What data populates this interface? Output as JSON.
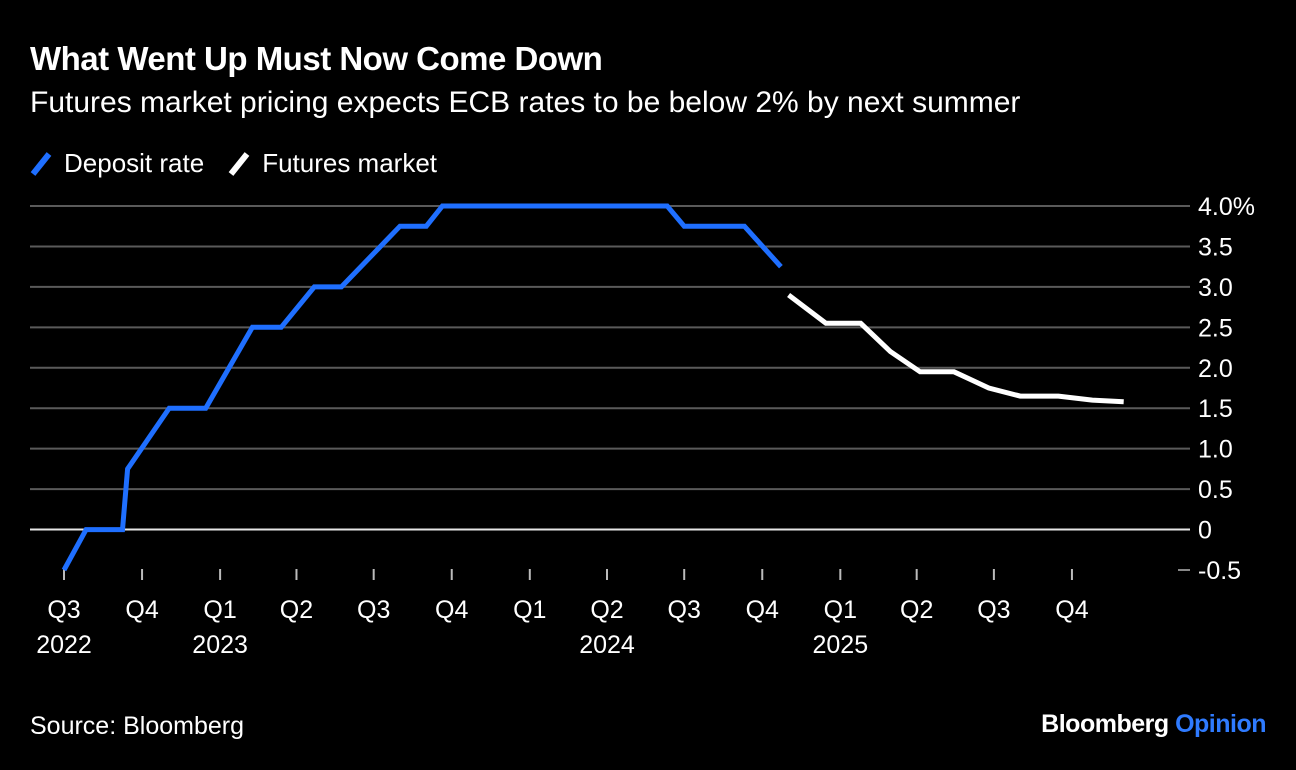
{
  "header": {
    "title": "What Went Up Must Now Come Down",
    "subtitle": "Futures market pricing expects ECB rates to be below 2% by next summer"
  },
  "footer": {
    "source": "Source: Bloomberg",
    "brand_main": "Bloomberg",
    "brand_accent": "Opinion"
  },
  "chart_data": {
    "type": "line",
    "title": "What Went Up Must Now Come Down",
    "subtitle": "Futures market pricing expects ECB rates to be below 2% by next summer",
    "legend": {
      "placement": "top-left"
    },
    "grid": true,
    "xlim": [
      "2022-07-01",
      "2026-01-01"
    ],
    "ylim": [
      -0.5,
      4.0
    ],
    "y_ticks": [
      {
        "value": 4.0,
        "label": "4.0%"
      },
      {
        "value": 3.5,
        "label": "3.5"
      },
      {
        "value": 3.0,
        "label": "3.0"
      },
      {
        "value": 2.5,
        "label": "2.5"
      },
      {
        "value": 2.0,
        "label": "2.0"
      },
      {
        "value": 1.5,
        "label": "1.5"
      },
      {
        "value": 1.0,
        "label": "1.0"
      },
      {
        "value": 0.5,
        "label": "0.5"
      },
      {
        "value": 0,
        "label": "0"
      },
      {
        "value": -0.5,
        "label": "-0.5"
      }
    ],
    "x_ticks": [
      {
        "date": "2022-07-01",
        "label": "Q3",
        "year": "2022"
      },
      {
        "date": "2022-10-01",
        "label": "Q4",
        "year": ""
      },
      {
        "date": "2023-01-01",
        "label": "Q1",
        "year": "2023"
      },
      {
        "date": "2023-04-01",
        "label": "Q2",
        "year": ""
      },
      {
        "date": "2023-07-01",
        "label": "Q3",
        "year": ""
      },
      {
        "date": "2023-10-01",
        "label": "Q4",
        "year": ""
      },
      {
        "date": "2024-01-01",
        "label": "Q1",
        "year": ""
      },
      {
        "date": "2024-04-01",
        "label": "Q2",
        "year": "2024"
      },
      {
        "date": "2024-07-01",
        "label": "Q3",
        "year": ""
      },
      {
        "date": "2024-10-01",
        "label": "Q4",
        "year": ""
      },
      {
        "date": "2025-01-01",
        "label": "Q1",
        "year": "2025"
      },
      {
        "date": "2025-04-01",
        "label": "Q2",
        "year": ""
      },
      {
        "date": "2025-07-01",
        "label": "Q3",
        "year": ""
      },
      {
        "date": "2025-10-01",
        "label": "Q4",
        "year": ""
      }
    ],
    "series": [
      {
        "name": "Deposit rate",
        "color": "#1f6fff",
        "points": [
          {
            "x": "2022-07-01",
            "y": -0.5
          },
          {
            "x": "2022-07-27",
            "y": 0.0
          },
          {
            "x": "2022-09-08",
            "y": 0.0
          },
          {
            "x": "2022-09-14",
            "y": 0.75
          },
          {
            "x": "2022-11-02",
            "y": 1.5
          },
          {
            "x": "2022-12-15",
            "y": 1.5
          },
          {
            "x": "2023-02-08",
            "y": 2.5
          },
          {
            "x": "2023-03-14",
            "y": 2.5
          },
          {
            "x": "2023-04-22",
            "y": 3.0
          },
          {
            "x": "2023-05-24",
            "y": 3.0
          },
          {
            "x": "2023-08-01",
            "y": 3.75
          },
          {
            "x": "2023-09-01",
            "y": 3.75
          },
          {
            "x": "2023-09-20",
            "y": 4.0
          },
          {
            "x": "2024-06-11",
            "y": 4.0
          },
          {
            "x": "2024-07-01",
            "y": 3.75
          },
          {
            "x": "2024-09-10",
            "y": 3.75
          },
          {
            "x": "2024-10-23",
            "y": 3.25
          }
        ]
      },
      {
        "name": "Futures market",
        "color": "#ffffff",
        "points": [
          {
            "x": "2024-11-01",
            "y": 2.9
          },
          {
            "x": "2024-12-15",
            "y": 2.55
          },
          {
            "x": "2025-01-25",
            "y": 2.55
          },
          {
            "x": "2025-03-01",
            "y": 2.2
          },
          {
            "x": "2025-04-05",
            "y": 1.95
          },
          {
            "x": "2025-05-15",
            "y": 1.95
          },
          {
            "x": "2025-06-25",
            "y": 1.75
          },
          {
            "x": "2025-08-01",
            "y": 1.65
          },
          {
            "x": "2025-09-15",
            "y": 1.65
          },
          {
            "x": "2025-10-25",
            "y": 1.6
          },
          {
            "x": "2025-12-01",
            "y": 1.58
          }
        ]
      }
    ]
  }
}
